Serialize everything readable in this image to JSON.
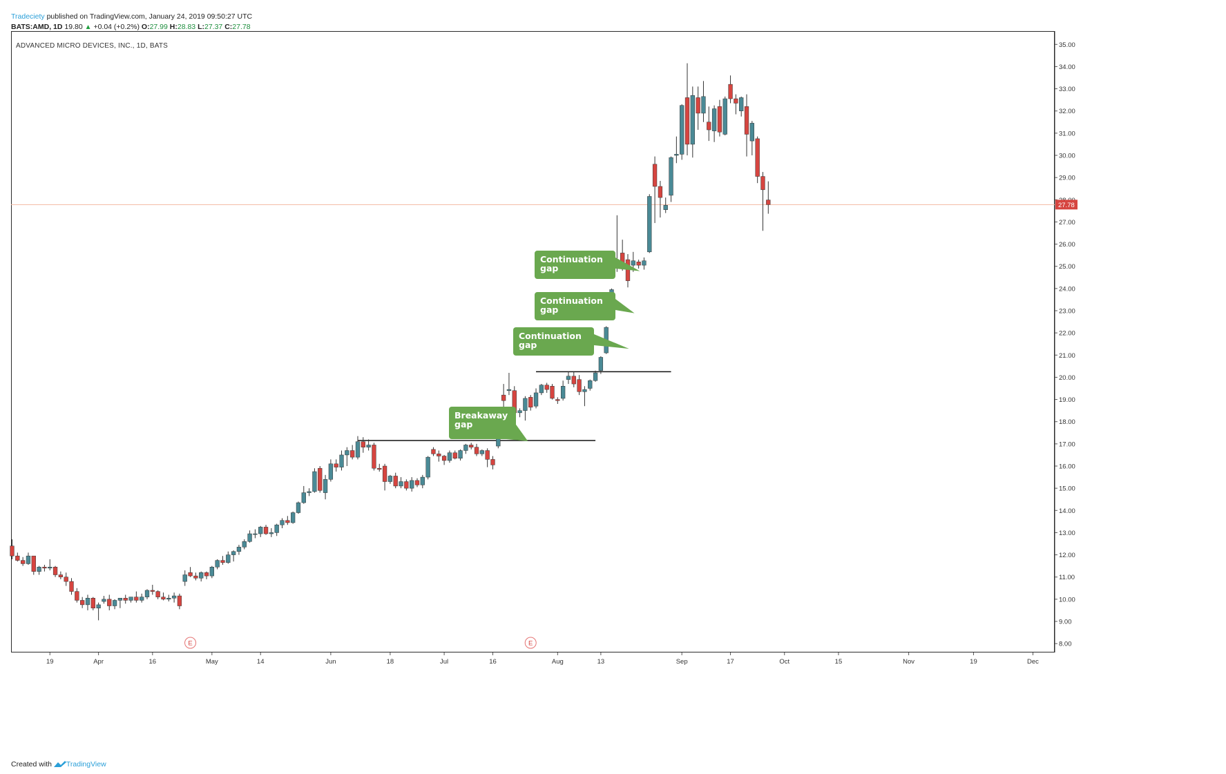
{
  "header": {
    "author": "Tradeciety",
    "published": "published on TradingView.com, January 24, 2019 09:50:27 UTC",
    "symbol": "BATS:AMD, 1D",
    "price": "19.80",
    "change": "+0.04 (+0.2%)",
    "open_label": "O:",
    "open": "27.99",
    "high_label": "H:",
    "high": "28.83",
    "low_label": "L:",
    "low": "27.37",
    "close_label": "C:",
    "close": "27.78"
  },
  "footer": {
    "created_with": "Created with",
    "brand": "TradingView"
  },
  "colors": {
    "up": "#4a8a96",
    "down": "#d64540",
    "annotation": "#6aa84f",
    "price_line": "#f2b8a0",
    "price_tag": "#d64540"
  },
  "chart_data": {
    "type": "candlestick",
    "title": "ADVANCED MICRO DEVICES, INC., 1D, BATS",
    "ylim": [
      7.6,
      35.6
    ],
    "y_ticks": [
      "35.00",
      "34.00",
      "33.00",
      "32.00",
      "31.00",
      "30.00",
      "29.00",
      "28.00",
      "27.00",
      "26.00",
      "25.00",
      "24.00",
      "23.00",
      "22.00",
      "21.00",
      "20.00",
      "19.00",
      "18.00",
      "17.00",
      "16.00",
      "15.00",
      "14.00",
      "13.00",
      "12.00",
      "11.00",
      "10.00",
      "9.00",
      "8.00"
    ],
    "x_ticks": [
      {
        "label": "19",
        "idx": 7
      },
      {
        "label": "Apr",
        "idx": 16
      },
      {
        "label": "16",
        "idx": 26
      },
      {
        "label": "May",
        "idx": 37
      },
      {
        "label": "14",
        "idx": 46
      },
      {
        "label": "Jun",
        "idx": 59
      },
      {
        "label": "18",
        "idx": 70
      },
      {
        "label": "Jul",
        "idx": 80
      },
      {
        "label": "16",
        "idx": 89
      },
      {
        "label": "Aug",
        "idx": 101
      },
      {
        "label": "13",
        "idx": 109
      },
      {
        "label": "Sep",
        "idx": 124
      },
      {
        "label": "17",
        "idx": 133
      },
      {
        "label": "Oct",
        "idx": 143
      },
      {
        "label": "15",
        "idx": 153
      },
      {
        "label": "Nov",
        "idx": 166
      },
      {
        "label": "19",
        "idx": 178
      },
      {
        "label": "Dec",
        "idx": 189
      }
    ],
    "last_price": 27.78,
    "last_price_label": "27.78",
    "earnings_markers": [
      {
        "idx": 33,
        "text": "E"
      },
      {
        "idx": 96,
        "text": "E"
      }
    ],
    "resistance_lines": [
      {
        "from_idx": 64,
        "to_idx": 108,
        "y": 17.15
      },
      {
        "from_idx": 97,
        "to_idx": 122,
        "y": 20.25
      }
    ],
    "annotations": [
      {
        "text": [
          "Breakaway",
          "gap"
        ],
        "pointer_idx": 96,
        "pointer_y": 17.0
      },
      {
        "text": [
          "Continuation",
          "gap"
        ],
        "pointer_idx": 115,
        "pointer_y": 21.1
      },
      {
        "text": [
          "Continuation",
          "gap"
        ],
        "pointer_idx": 116,
        "pointer_y": 22.7
      },
      {
        "text": [
          "Continuation",
          "gap"
        ],
        "pointer_idx": 117,
        "pointer_y": 24.6
      }
    ],
    "candles": [
      [
        12.4,
        12.7,
        11.8,
        11.95
      ],
      [
        11.95,
        12.1,
        11.7,
        11.75
      ],
      [
        11.75,
        11.9,
        11.5,
        11.6
      ],
      [
        11.6,
        12.1,
        11.55,
        11.95
      ],
      [
        11.95,
        11.95,
        11.1,
        11.25
      ],
      [
        11.25,
        11.5,
        11.1,
        11.45
      ],
      [
        11.45,
        11.55,
        11.25,
        11.4
      ],
      [
        11.4,
        11.8,
        11.3,
        11.45
      ],
      [
        11.45,
        11.5,
        11.0,
        11.1
      ],
      [
        11.1,
        11.25,
        10.9,
        11.0
      ],
      [
        11.0,
        11.2,
        10.6,
        10.8
      ],
      [
        10.8,
        10.95,
        10.2,
        10.35
      ],
      [
        10.35,
        10.5,
        9.85,
        9.95
      ],
      [
        9.95,
        10.1,
        9.6,
        9.75
      ],
      [
        9.75,
        10.2,
        9.5,
        10.05
      ],
      [
        10.05,
        10.1,
        9.5,
        9.6
      ],
      [
        9.6,
        9.85,
        9.05,
        9.75
      ],
      [
        9.9,
        10.15,
        9.8,
        10.0
      ],
      [
        10.0,
        10.2,
        9.5,
        9.7
      ],
      [
        9.7,
        10.0,
        9.55,
        9.95
      ],
      [
        9.95,
        10.05,
        9.6,
        10.05
      ],
      [
        10.05,
        10.2,
        9.8,
        9.95
      ],
      [
        9.95,
        10.1,
        9.85,
        10.1
      ],
      [
        10.1,
        10.35,
        9.85,
        9.95
      ],
      [
        9.95,
        10.25,
        9.85,
        10.1
      ],
      [
        10.1,
        10.45,
        10.0,
        10.4
      ],
      [
        10.4,
        10.65,
        10.2,
        10.35
      ],
      [
        10.35,
        10.4,
        10.0,
        10.1
      ],
      [
        10.1,
        10.3,
        9.95,
        10.0
      ],
      [
        10.0,
        10.2,
        9.9,
        10.05
      ],
      [
        10.05,
        10.3,
        9.85,
        10.15
      ],
      [
        10.15,
        10.25,
        9.55,
        9.7
      ],
      [
        10.8,
        11.3,
        10.6,
        11.1
      ],
      [
        11.2,
        11.45,
        11.0,
        11.05
      ],
      [
        11.05,
        11.2,
        10.85,
        10.95
      ],
      [
        10.95,
        11.25,
        10.8,
        11.2
      ],
      [
        11.2,
        11.25,
        10.9,
        11.05
      ],
      [
        11.05,
        11.5,
        10.95,
        11.45
      ],
      [
        11.45,
        11.8,
        11.35,
        11.75
      ],
      [
        11.75,
        11.95,
        11.55,
        11.65
      ],
      [
        11.65,
        12.15,
        11.6,
        12.0
      ],
      [
        12.0,
        12.2,
        11.7,
        12.15
      ],
      [
        12.15,
        12.45,
        12.0,
        12.35
      ],
      [
        12.35,
        12.7,
        12.25,
        12.6
      ],
      [
        12.6,
        13.1,
        12.55,
        12.95
      ],
      [
        12.95,
        13.15,
        12.75,
        12.95
      ],
      [
        12.95,
        13.3,
        12.8,
        13.25
      ],
      [
        13.25,
        13.35,
        12.9,
        12.95
      ],
      [
        12.95,
        13.2,
        12.8,
        13.0
      ],
      [
        13.0,
        13.4,
        12.85,
        13.35
      ],
      [
        13.35,
        13.65,
        13.2,
        13.55
      ],
      [
        13.55,
        13.75,
        13.35,
        13.45
      ],
      [
        13.45,
        13.95,
        13.4,
        13.9
      ],
      [
        13.9,
        14.4,
        13.85,
        14.35
      ],
      [
        14.35,
        15.1,
        14.3,
        14.8
      ],
      [
        14.8,
        15.0,
        14.65,
        14.85
      ],
      [
        14.85,
        15.9,
        14.8,
        15.75
      ],
      [
        15.9,
        16.0,
        14.8,
        14.9
      ],
      [
        14.8,
        15.6,
        14.5,
        15.4
      ],
      [
        15.4,
        16.3,
        15.3,
        16.1
      ],
      [
        16.1,
        16.3,
        15.75,
        15.95
      ],
      [
        15.95,
        16.7,
        15.8,
        16.5
      ],
      [
        16.5,
        16.85,
        16.0,
        16.7
      ],
      [
        16.7,
        16.95,
        16.3,
        16.4
      ],
      [
        16.4,
        17.35,
        16.3,
        17.1
      ],
      [
        17.1,
        17.3,
        16.6,
        16.85
      ],
      [
        16.85,
        17.2,
        16.7,
        16.95
      ],
      [
        16.95,
        17.05,
        15.8,
        15.9
      ],
      [
        15.9,
        16.1,
        15.75,
        15.85
      ],
      [
        16.0,
        16.1,
        14.9,
        15.3
      ],
      [
        15.3,
        15.6,
        15.2,
        15.55
      ],
      [
        15.55,
        15.7,
        15.0,
        15.1
      ],
      [
        15.1,
        15.5,
        15.0,
        15.3
      ],
      [
        15.3,
        15.4,
        14.9,
        15.0
      ],
      [
        15.0,
        15.5,
        14.85,
        15.35
      ],
      [
        15.35,
        15.45,
        15.05,
        15.15
      ],
      [
        15.15,
        15.6,
        15.0,
        15.5
      ],
      [
        15.5,
        16.45,
        15.4,
        16.4
      ],
      [
        16.75,
        16.85,
        16.45,
        16.55
      ],
      [
        16.55,
        16.7,
        16.2,
        16.45
      ],
      [
        16.45,
        16.5,
        16.05,
        16.25
      ],
      [
        16.25,
        16.7,
        16.15,
        16.6
      ],
      [
        16.6,
        16.7,
        16.3,
        16.35
      ],
      [
        16.35,
        16.75,
        16.25,
        16.7
      ],
      [
        16.7,
        17.0,
        16.55,
        16.95
      ],
      [
        16.95,
        17.05,
        16.75,
        16.85
      ],
      [
        16.85,
        17.0,
        16.45,
        16.55
      ],
      [
        16.55,
        16.75,
        16.45,
        16.7
      ],
      [
        16.7,
        16.8,
        15.95,
        16.3
      ],
      [
        16.3,
        16.45,
        15.85,
        16.05
      ],
      [
        16.9,
        18.6,
        16.8,
        18.4
      ],
      [
        19.2,
        19.7,
        18.6,
        18.95
      ],
      [
        19.4,
        20.2,
        19.2,
        19.45
      ],
      [
        19.4,
        19.6,
        18.3,
        18.4
      ],
      [
        18.4,
        18.6,
        18.2,
        18.5
      ],
      [
        18.5,
        19.15,
        18.05,
        19.05
      ],
      [
        19.1,
        19.2,
        18.5,
        18.65
      ],
      [
        18.7,
        19.5,
        18.6,
        19.3
      ],
      [
        19.3,
        19.7,
        19.2,
        19.65
      ],
      [
        19.65,
        19.75,
        19.3,
        19.45
      ],
      [
        19.6,
        19.7,
        19.0,
        19.05
      ],
      [
        19.0,
        19.1,
        18.8,
        18.95
      ],
      [
        19.05,
        19.85,
        18.95,
        19.6
      ],
      [
        19.9,
        20.25,
        19.7,
        20.05
      ],
      [
        20.05,
        20.25,
        19.55,
        19.7
      ],
      [
        19.9,
        20.1,
        19.2,
        19.35
      ],
      [
        19.35,
        19.6,
        18.7,
        19.45
      ],
      [
        19.5,
        19.9,
        19.4,
        19.85
      ],
      [
        19.85,
        20.3,
        19.8,
        20.2
      ],
      [
        20.3,
        20.95,
        20.15,
        20.9
      ],
      [
        21.1,
        22.3,
        21.05,
        22.25
      ],
      [
        22.75,
        24.0,
        22.65,
        23.95
      ],
      [
        25.1,
        27.3,
        24.75,
        25.3
      ],
      [
        25.6,
        26.2,
        24.8,
        25.1
      ],
      [
        25.3,
        25.55,
        24.05,
        24.35
      ],
      [
        25.05,
        25.65,
        24.75,
        25.25
      ],
      [
        25.2,
        25.3,
        24.9,
        25.05
      ],
      [
        25.05,
        25.4,
        24.85,
        25.25
      ],
      [
        25.65,
        28.25,
        25.6,
        28.15
      ],
      [
        29.6,
        29.95,
        26.95,
        28.6
      ],
      [
        28.6,
        28.85,
        27.2,
        28.1
      ],
      [
        27.55,
        28.1,
        27.4,
        27.75
      ],
      [
        28.2,
        29.95,
        27.9,
        29.9
      ],
      [
        30.0,
        30.85,
        29.65,
        30.05
      ],
      [
        30.05,
        32.3,
        29.8,
        32.25
      ],
      [
        32.6,
        34.15,
        30.0,
        30.5
      ],
      [
        30.5,
        33.1,
        29.9,
        32.7
      ],
      [
        32.6,
        33.1,
        31.15,
        31.9
      ],
      [
        31.9,
        33.35,
        31.5,
        32.65
      ],
      [
        31.5,
        32.2,
        30.65,
        31.15
      ],
      [
        31.1,
        32.25,
        30.6,
        32.1
      ],
      [
        32.2,
        32.5,
        30.85,
        31.05
      ],
      [
        30.95,
        32.65,
        30.9,
        32.55
      ],
      [
        33.2,
        33.6,
        32.35,
        32.55
      ],
      [
        32.55,
        32.75,
        31.85,
        32.35
      ],
      [
        32.0,
        32.65,
        31.75,
        32.6
      ],
      [
        32.2,
        32.75,
        29.95,
        30.95
      ],
      [
        30.65,
        31.55,
        30.0,
        31.45
      ],
      [
        30.75,
        30.85,
        28.75,
        29.05
      ],
      [
        29.05,
        29.25,
        26.6,
        28.45
      ],
      [
        27.99,
        28.83,
        27.37,
        27.78
      ]
    ]
  }
}
